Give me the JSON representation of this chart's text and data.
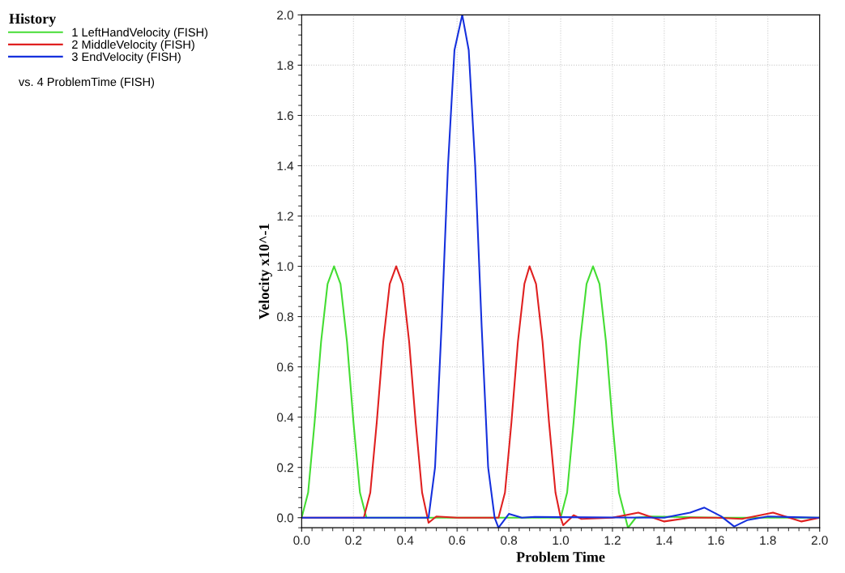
{
  "chart_data": {
    "type": "line",
    "xlabel": "Problem Time",
    "ylabel": "Velocity x10^-1",
    "legend_title": "History",
    "legend": "left",
    "grid": true,
    "xlim": [
      0.0,
      2.0
    ],
    "xticks": [
      {
        "value": 0,
        "label": "0.0"
      },
      0.2,
      0.4,
      0.6,
      0.8,
      {
        "value": 1,
        "label": "1.0"
      },
      1.2,
      1.4,
      1.6,
      1.8,
      {
        "value": 2,
        "label": "2.0"
      }
    ],
    "ylim": [
      -0.04,
      2.0
    ],
    "yticks": [
      {
        "value": 0,
        "label": "0.0"
      },
      0.2,
      0.4,
      0.6,
      0.8,
      {
        "value": 1,
        "label": "1.0"
      },
      1.2,
      1.4,
      1.6,
      1.8,
      {
        "value": 2,
        "label": "2.0"
      }
    ],
    "annotations": [
      "vs. 4 ProblemTime (FISH)"
    ],
    "series": [
      {
        "name": "1 LeftHandVelocity (FISH)",
        "color": "#44dd33",
        "x": [
          0,
          0.025,
          0.05,
          0.075,
          0.1,
          0.125,
          0.15,
          0.175,
          0.2,
          0.225,
          0.25,
          0.5,
          0.75,
          1.0,
          1.025,
          1.05,
          1.075,
          1.1,
          1.125,
          1.15,
          1.175,
          1.2,
          1.225,
          1.25,
          1.26,
          1.29,
          1.35,
          1.6,
          2.0
        ],
        "values": [
          0,
          0.1,
          0.38,
          0.7,
          0.93,
          1.0,
          0.93,
          0.7,
          0.38,
          0.1,
          0,
          0,
          0,
          0,
          0.1,
          0.38,
          0.7,
          0.93,
          1.0,
          0.93,
          0.7,
          0.38,
          0.1,
          0,
          -0.04,
          0,
          0.005,
          0,
          0
        ]
      },
      {
        "name": "2 MiddleVelocity (FISH)",
        "color": "#e02020",
        "x": [
          0,
          0.24,
          0.265,
          0.29,
          0.315,
          0.34,
          0.365,
          0.39,
          0.415,
          0.44,
          0.465,
          0.49,
          0.52,
          0.6,
          0.76,
          0.785,
          0.81,
          0.835,
          0.86,
          0.88,
          0.905,
          0.93,
          0.955,
          0.98,
          1.0,
          1.01,
          1.05,
          1.08,
          1.2,
          1.3,
          1.4,
          1.5,
          1.6,
          1.7,
          1.82,
          1.93,
          2.0
        ],
        "values": [
          0,
          0,
          0.1,
          0.38,
          0.7,
          0.93,
          1.0,
          0.93,
          0.7,
          0.38,
          0.1,
          -0.02,
          0.005,
          0,
          0,
          0.1,
          0.38,
          0.7,
          0.93,
          1.0,
          0.93,
          0.7,
          0.38,
          0.1,
          0,
          -0.03,
          0.01,
          -0.005,
          0,
          0.02,
          -0.015,
          0,
          0,
          -0.005,
          0.02,
          -0.015,
          0
        ]
      },
      {
        "name": "3 EndVelocity (FISH)",
        "color": "#1530dd",
        "x": [
          0,
          0.49,
          0.515,
          0.54,
          0.565,
          0.59,
          0.62,
          0.645,
          0.67,
          0.695,
          0.72,
          0.745,
          0.76,
          0.8,
          0.85,
          0.9,
          1.0,
          1.4,
          1.5,
          1.555,
          1.62,
          1.67,
          1.72,
          1.8,
          1.9,
          2.0
        ],
        "values": [
          0,
          0,
          0.2,
          0.76,
          1.4,
          1.86,
          2.0,
          1.86,
          1.4,
          0.76,
          0.2,
          0,
          -0.04,
          0.015,
          0,
          0.003,
          0.002,
          0,
          0.02,
          0.04,
          0.005,
          -0.035,
          -0.01,
          0.005,
          0.002,
          0
        ]
      }
    ]
  }
}
